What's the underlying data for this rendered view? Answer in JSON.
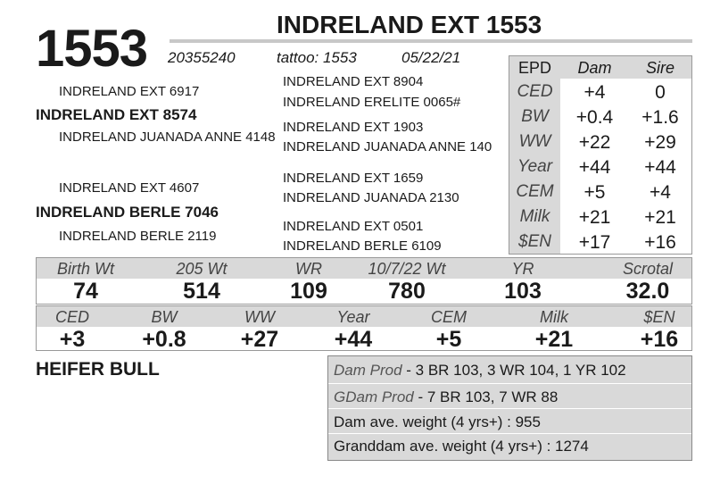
{
  "header": {
    "lot": "1553",
    "title": "INDRELAND EXT 1553",
    "registration": "20355240",
    "tattoo": "tattoo: 1553",
    "birth_date": "05/22/21"
  },
  "pedigree": {
    "sire": "INDRELAND EXT 8574",
    "sire_sire": "INDRELAND EXT 6917",
    "sire_dam": "INDRELAND JUANADA ANNE 4148",
    "dam": "INDRELAND BERLE 7046",
    "dam_sire": "INDRELAND EXT 4607",
    "dam_dam": "INDRELAND BERLE 2119",
    "sss": "INDRELAND EXT 8904",
    "ssd": "INDRELAND ERELITE 0065#",
    "sds": "INDRELAND EXT 1903",
    "sdd": "INDRELAND JUANADA ANNE 140",
    "dss": "INDRELAND EXT 1659",
    "dsd": "INDRELAND JUANADA 2130",
    "dds": "INDRELAND EXT 0501",
    "ddd": "INDRELAND BERLE 6109"
  },
  "parent_epds": {
    "columns": [
      "EPD",
      "Dam",
      "Sire"
    ],
    "rows": [
      [
        "CED",
        "+4",
        "0"
      ],
      [
        "BW",
        "+0.4",
        "+1.6"
      ],
      [
        "WW",
        "+22",
        "+29"
      ],
      [
        "Year",
        "+44",
        "+44"
      ],
      [
        "CEM",
        "+5",
        "+4"
      ],
      [
        "Milk",
        "+21",
        "+21"
      ],
      [
        "$EN",
        "+17",
        "+16"
      ]
    ]
  },
  "performance": {
    "labels": [
      "Birth Wt",
      "205 Wt",
      "WR",
      "10/7/22 Wt",
      "YR",
      "Scrotal"
    ],
    "values": [
      "74",
      "514",
      "109",
      "780",
      "103",
      "32.0"
    ]
  },
  "epds": {
    "labels": [
      "CED",
      "BW",
      "WW",
      "Year",
      "CEM",
      "Milk",
      "$EN"
    ],
    "values": [
      "+3",
      "+0.8",
      "+27",
      "+44",
      "+5",
      "+21",
      "+16"
    ]
  },
  "sex": "HEIFER BULL",
  "notes": {
    "dam_prod_label": "Dam Prod",
    "dam_prod": "- 3 BR 103, 3 WR 104, 1 YR 102",
    "gdam_prod_label": "GDam Prod",
    "gdam_prod": "- 7 BR 103, 7 WR 88",
    "dam_weight": "Dam ave. weight (4 yrs+) : 955",
    "granddam_weight": "Granddam ave. weight (4 yrs+) : 1274"
  }
}
